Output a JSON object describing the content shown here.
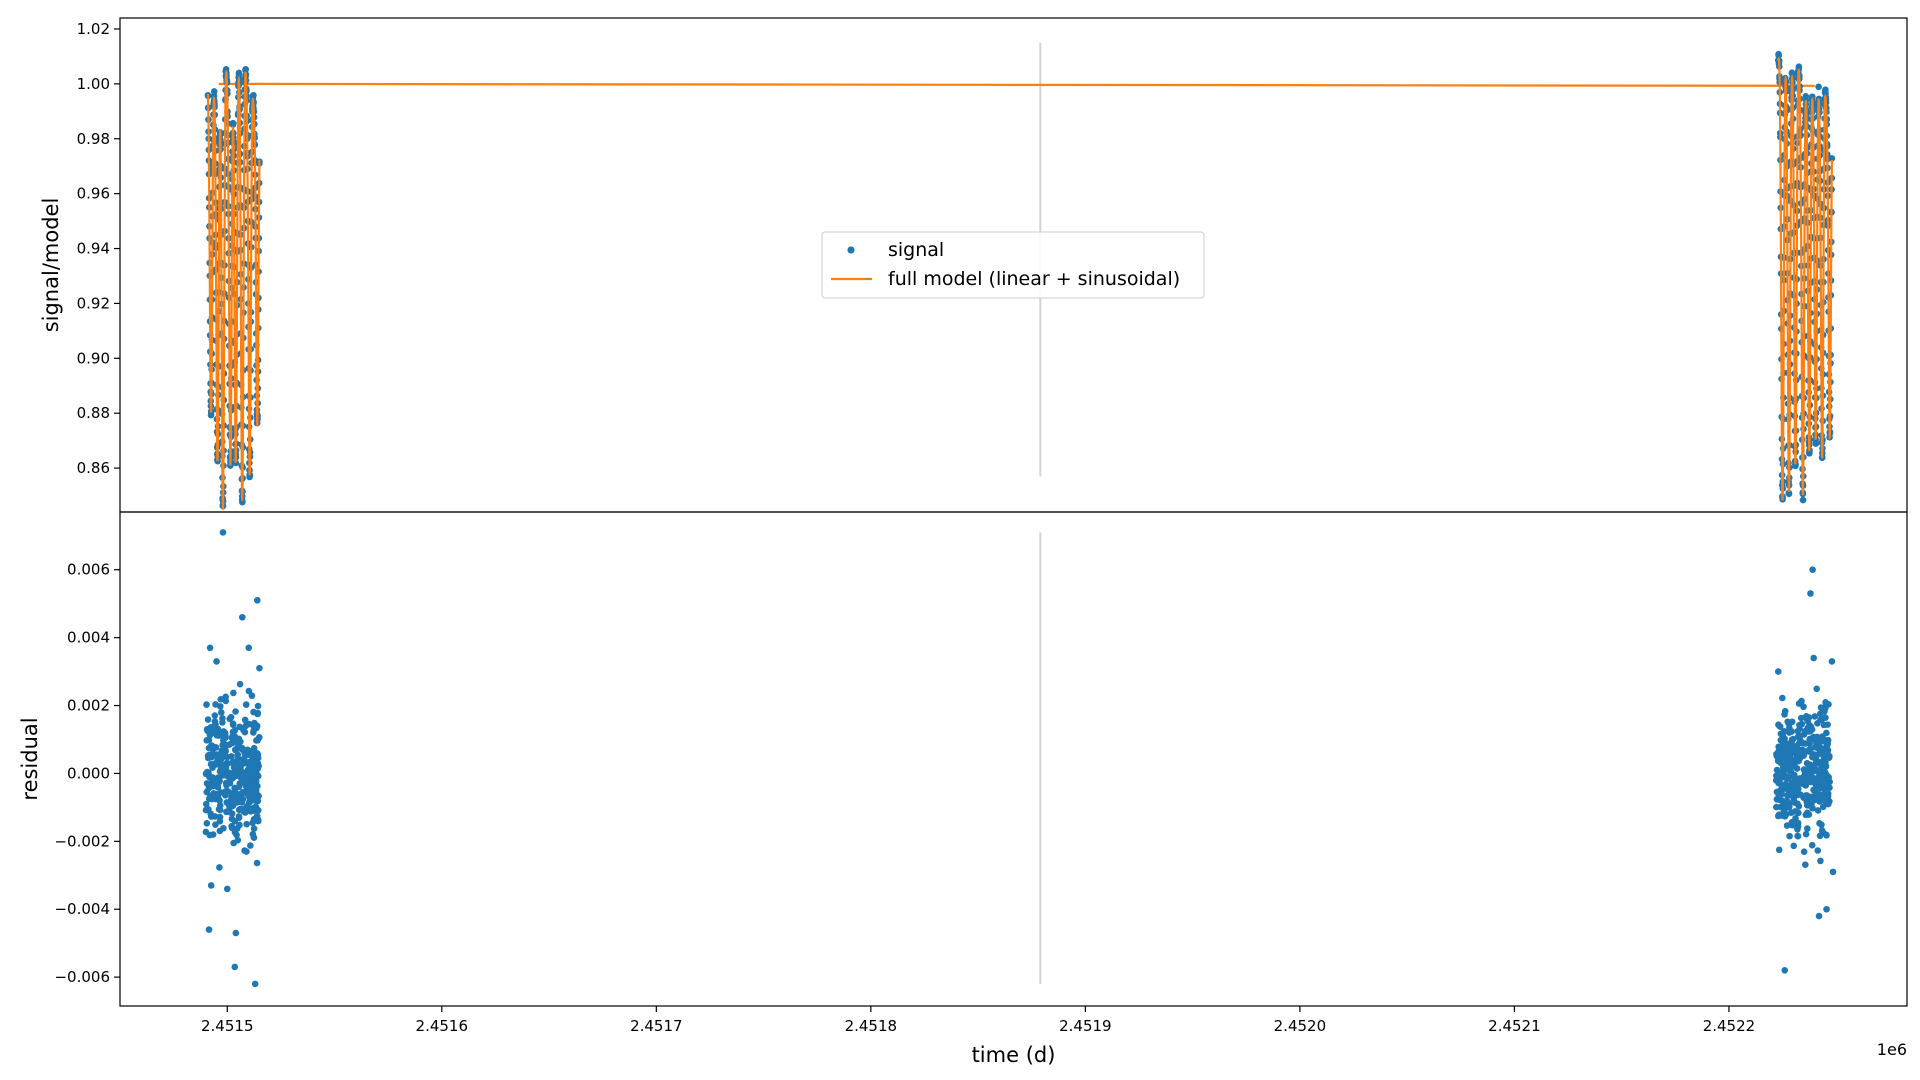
{
  "chart_data": {
    "type": "scatter",
    "x_offset_label": "1e6",
    "xlabel": "time (d)",
    "xlim": [
      2451450,
      2452283
    ],
    "x_ticks": [
      2451500,
      2451600,
      2451700,
      2451800,
      2451900,
      2452000,
      2452100,
      2452200
    ],
    "x_tick_labels": [
      "2.4515",
      "2.4516",
      "2.4517",
      "2.4518",
      "2.4519",
      "2.4520",
      "2.4521",
      "2.4522"
    ],
    "vertical_marker_x": 2451879,
    "grid": false,
    "colors": {
      "signal": "#1f77b4",
      "model": "#ff7f0e",
      "marker": "#d3d3d3"
    },
    "panels": [
      {
        "name": "top",
        "ylabel": "signal/model",
        "ylim": [
          0.844,
          1.024
        ],
        "y_ticks": [
          0.86,
          0.88,
          0.9,
          0.92,
          0.94,
          0.96,
          0.98,
          1.0,
          1.02
        ],
        "y_tick_labels": [
          "0.86",
          "0.88",
          "0.90",
          "0.92",
          "0.94",
          "0.96",
          "0.98",
          "1.00",
          "1.02"
        ],
        "legend": {
          "placement": "center",
          "entries": [
            "signal",
            "full model (linear + sinusoidal)"
          ]
        },
        "baseline_model": [
          [
            2451496,
            1.0
          ],
          [
            2451508,
            1.0
          ],
          [
            2452230,
            0.9993
          ],
          [
            2452240,
            0.9993
          ]
        ],
        "clusters": [
          {
            "x_start": 2451491,
            "x_end": 2451515,
            "dips": [
              {
                "x": 2451492.5,
                "min": 0.88
              },
              {
                "x": 2451495.5,
                "min": 0.862
              },
              {
                "x": 2451498,
                "min": 0.853
              },
              {
                "x": 2451501.5,
                "min": 0.86
              },
              {
                "x": 2451504,
                "min": 0.87
              },
              {
                "x": 2451507,
                "min": 0.856
              },
              {
                "x": 2451510.5,
                "min": 0.856
              },
              {
                "x": 2451514,
                "min": 0.866
              }
            ]
          },
          {
            "x_start": 2452223,
            "x_end": 2452248,
            "dips": [
              {
                "x": 2452225,
                "min": 0.857
              },
              {
                "x": 2452228,
                "min": 0.86
              },
              {
                "x": 2452231,
                "min": 0.87
              },
              {
                "x": 2452234.5,
                "min": 0.85
              },
              {
                "x": 2452237.5,
                "min": 0.866
              },
              {
                "x": 2452240.5,
                "min": 0.87
              },
              {
                "x": 2452243.5,
                "min": 0.863
              },
              {
                "x": 2452247,
                "min": 0.862
              }
            ]
          }
        ]
      },
      {
        "name": "bottom",
        "ylabel": "residual",
        "ylim": [
          -0.00685,
          0.0077
        ],
        "y_ticks": [
          -0.006,
          -0.004,
          -0.002,
          0.0,
          0.002,
          0.004,
          0.006
        ],
        "y_tick_labels": [
          "−0.006",
          "−0.004",
          "−0.002",
          "0.000",
          "0.002",
          "0.004",
          "0.006"
        ],
        "clusters": [
          {
            "x_start": 2451490,
            "x_end": 2451515
          },
          {
            "x_start": 2452222,
            "x_end": 2452247
          }
        ],
        "outliers": [
          [
            2451498,
            0.0071
          ],
          [
            2451507,
            0.0046
          ],
          [
            2451514,
            0.0051
          ],
          [
            2451492,
            0.0037
          ],
          [
            2451510,
            0.0037
          ],
          [
            2451495,
            0.0033
          ],
          [
            2451515,
            0.0031
          ],
          [
            2451491.5,
            -0.0046
          ],
          [
            2451492.5,
            -0.0033
          ],
          [
            2451500,
            -0.0034
          ],
          [
            2451504,
            -0.0047
          ],
          [
            2451503.5,
            -0.0057
          ],
          [
            2451513,
            -0.0062
          ],
          [
            2452239,
            0.006
          ],
          [
            2452238,
            0.0053
          ],
          [
            2452223,
            0.003
          ],
          [
            2452239.5,
            0.0034
          ],
          [
            2452248,
            0.0033
          ],
          [
            2452226,
            -0.0058
          ],
          [
            2452242,
            -0.0042
          ],
          [
            2452245.5,
            -0.004
          ],
          [
            2452248.5,
            -0.0029
          ]
        ]
      }
    ]
  }
}
